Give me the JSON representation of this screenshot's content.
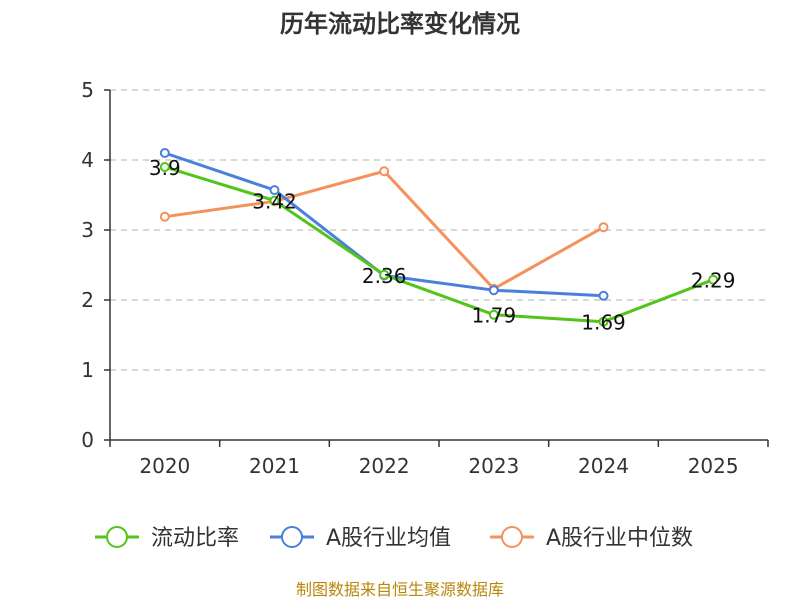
{
  "chart_data": {
    "type": "line",
    "title": "历年流动比率变化情况",
    "categories": [
      "2020",
      "2021",
      "2022",
      "2023",
      "2024",
      "2025"
    ],
    "ylim": [
      0,
      5
    ],
    "yticks": [
      0,
      1,
      2,
      3,
      4,
      5
    ],
    "grid": true,
    "legend_position": "bottom",
    "series": [
      {
        "name": "流动比率",
        "color": "#52c41a",
        "values": [
          3.9,
          3.42,
          2.36,
          1.79,
          1.69,
          2.29
        ],
        "labels": [
          "3.9",
          "3.42",
          "2.36",
          "1.79",
          "1.69",
          "2.29"
        ]
      },
      {
        "name": "A股行业均值",
        "color": "#4a7fdc",
        "values": [
          4.1,
          3.57,
          2.35,
          2.14,
          2.06,
          null
        ]
      },
      {
        "name": "A股行业中位数",
        "color": "#f5915a",
        "values": [
          3.19,
          3.41,
          3.84,
          2.16,
          3.04,
          null
        ]
      }
    ],
    "source": "制图数据来自恒生聚源数据库"
  }
}
